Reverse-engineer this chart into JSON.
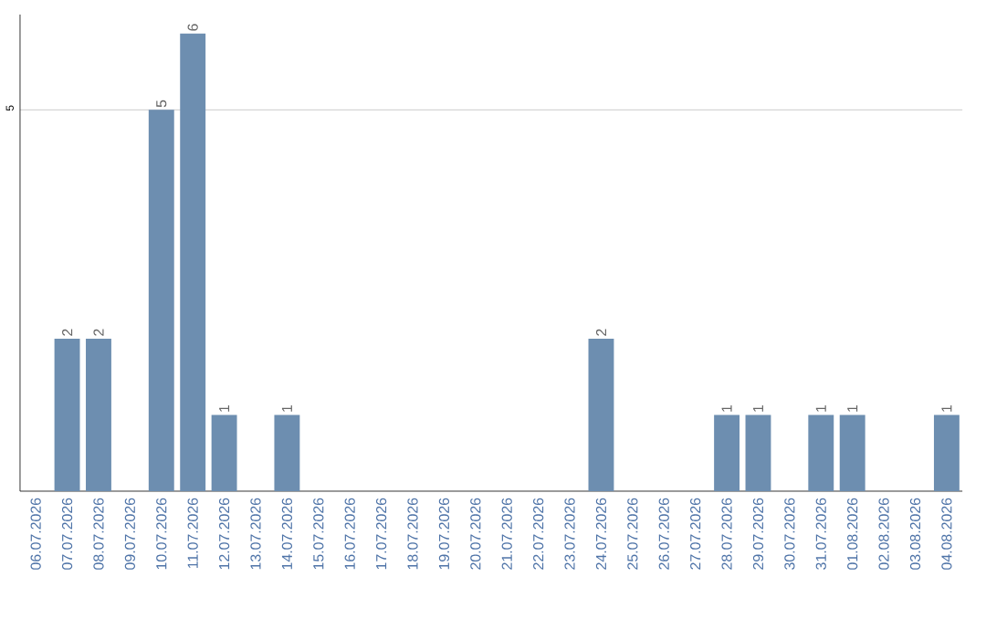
{
  "chart_data": {
    "type": "bar",
    "categories": [
      "06.07.2026",
      "07.07.2026",
      "08.07.2026",
      "09.07.2026",
      "10.07.2026",
      "11.07.2026",
      "12.07.2026",
      "13.07.2026",
      "14.07.2026",
      "15.07.2026",
      "16.07.2026",
      "17.07.2026",
      "18.07.2026",
      "19.07.2026",
      "20.07.2026",
      "21.07.2026",
      "22.07.2026",
      "23.07.2026",
      "24.07.2026",
      "25.07.2026",
      "26.07.2026",
      "27.07.2026",
      "28.07.2026",
      "29.07.2026",
      "30.07.2026",
      "31.07.2026",
      "01.08.2026",
      "02.08.2026",
      "03.08.2026",
      "04.08.2026"
    ],
    "values": [
      0,
      2,
      2,
      0,
      5,
      6,
      1,
      0,
      1,
      0,
      0,
      0,
      0,
      0,
      0,
      0,
      0,
      0,
      2,
      0,
      0,
      0,
      1,
      1,
      0,
      1,
      1,
      0,
      0,
      1
    ],
    "value_labels": [
      null,
      "2",
      "2",
      null,
      "5",
      "6",
      "1",
      null,
      "1",
      null,
      null,
      null,
      null,
      null,
      null,
      null,
      null,
      null,
      "2",
      null,
      null,
      null,
      "1",
      "1",
      null,
      "1",
      "1",
      null,
      null,
      "1"
    ],
    "color": "#6d8eb0",
    "ylim": [
      0,
      6.25
    ],
    "yticks": [
      5
    ],
    "grid": "y"
  }
}
